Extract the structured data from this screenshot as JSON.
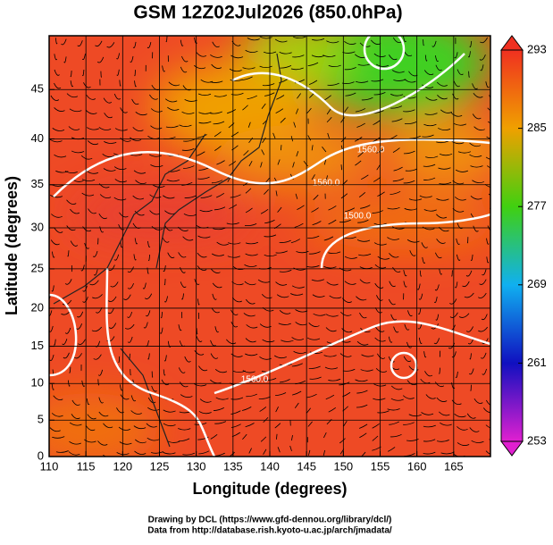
{
  "chart_data": {
    "type": "map",
    "title": "GSM 12Z02Jul2026 (850.0hPa)",
    "x_label": "Longitude (degrees)",
    "y_label": "Latitude  (degrees)",
    "xlim": [
      110,
      170
    ],
    "ylim": [
      0,
      50
    ],
    "yscale": "mercator",
    "xticks": [
      110,
      115,
      120,
      125,
      130,
      135,
      140,
      145,
      150,
      155,
      160,
      165
    ],
    "yticks": [
      0,
      5,
      10,
      15,
      20,
      25,
      30,
      35,
      40,
      45
    ],
    "grid": true,
    "colorbar": {
      "lim": [
        253,
        293
      ],
      "ticks": [
        253,
        261,
        269,
        277,
        285,
        293
      ],
      "colors": [
        "#e020d0",
        "#1010c0",
        "#10b0f0",
        "#40d010",
        "#f0a000",
        "#f03020"
      ]
    },
    "contour_labels": [
      "1560.0",
      "1500.0",
      "1560.0",
      "1560.0"
    ],
    "footer": [
      "Drawing by DCL (https://www.gfd-dennou.org/library/dcl/)",
      "Data from http://database.rish.kyoto-u.ac.jp/arch/jmadata/"
    ]
  }
}
